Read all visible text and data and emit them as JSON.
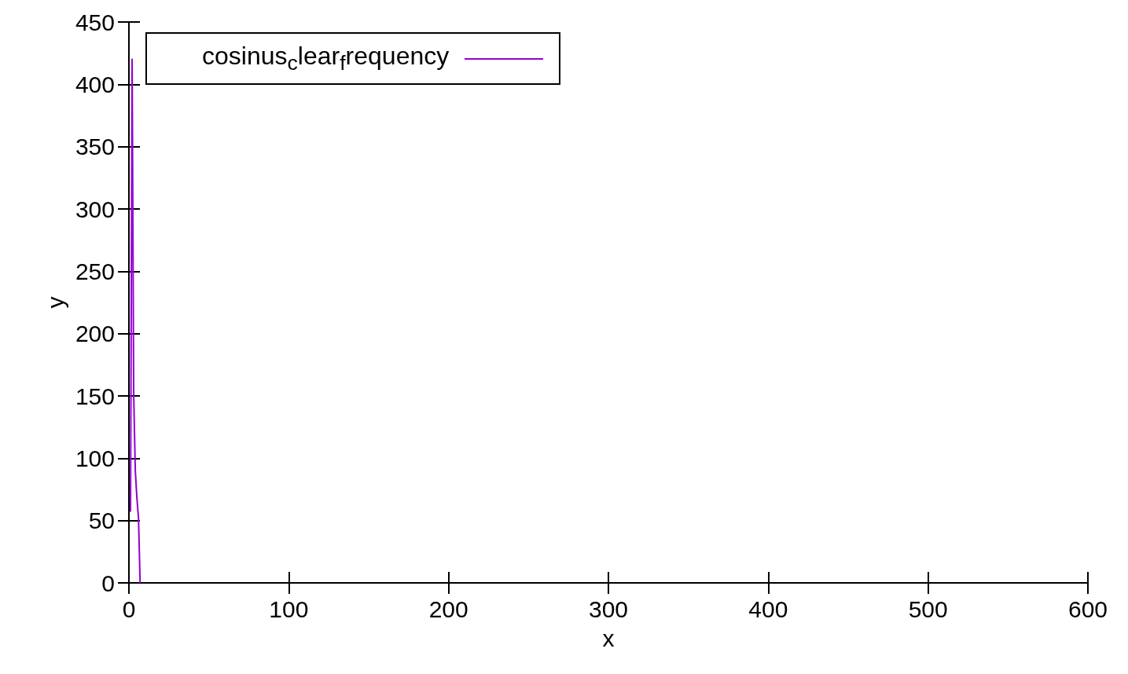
{
  "chart_data": {
    "type": "line",
    "xlabel": "x",
    "ylabel": "y",
    "xlim": [
      0,
      600
    ],
    "xticks": [
      0,
      100,
      200,
      300,
      400,
      500,
      600
    ],
    "ylim": [
      0,
      450
    ],
    "yticks": [
      0,
      50,
      100,
      150,
      200,
      250,
      300,
      350,
      400,
      450
    ],
    "grid": false,
    "legend": "top left",
    "marker": "none",
    "line_style": "solid",
    "series": [
      {
        "name": "cosinus$_{c}$lear$_{f}$requency",
        "color": "#9400d3",
        "x": [
          1,
          2,
          3,
          4,
          5,
          6,
          7
        ],
        "values": [
          57,
          420,
          150,
          90,
          68,
          52,
          0
        ]
      }
    ]
  }
}
